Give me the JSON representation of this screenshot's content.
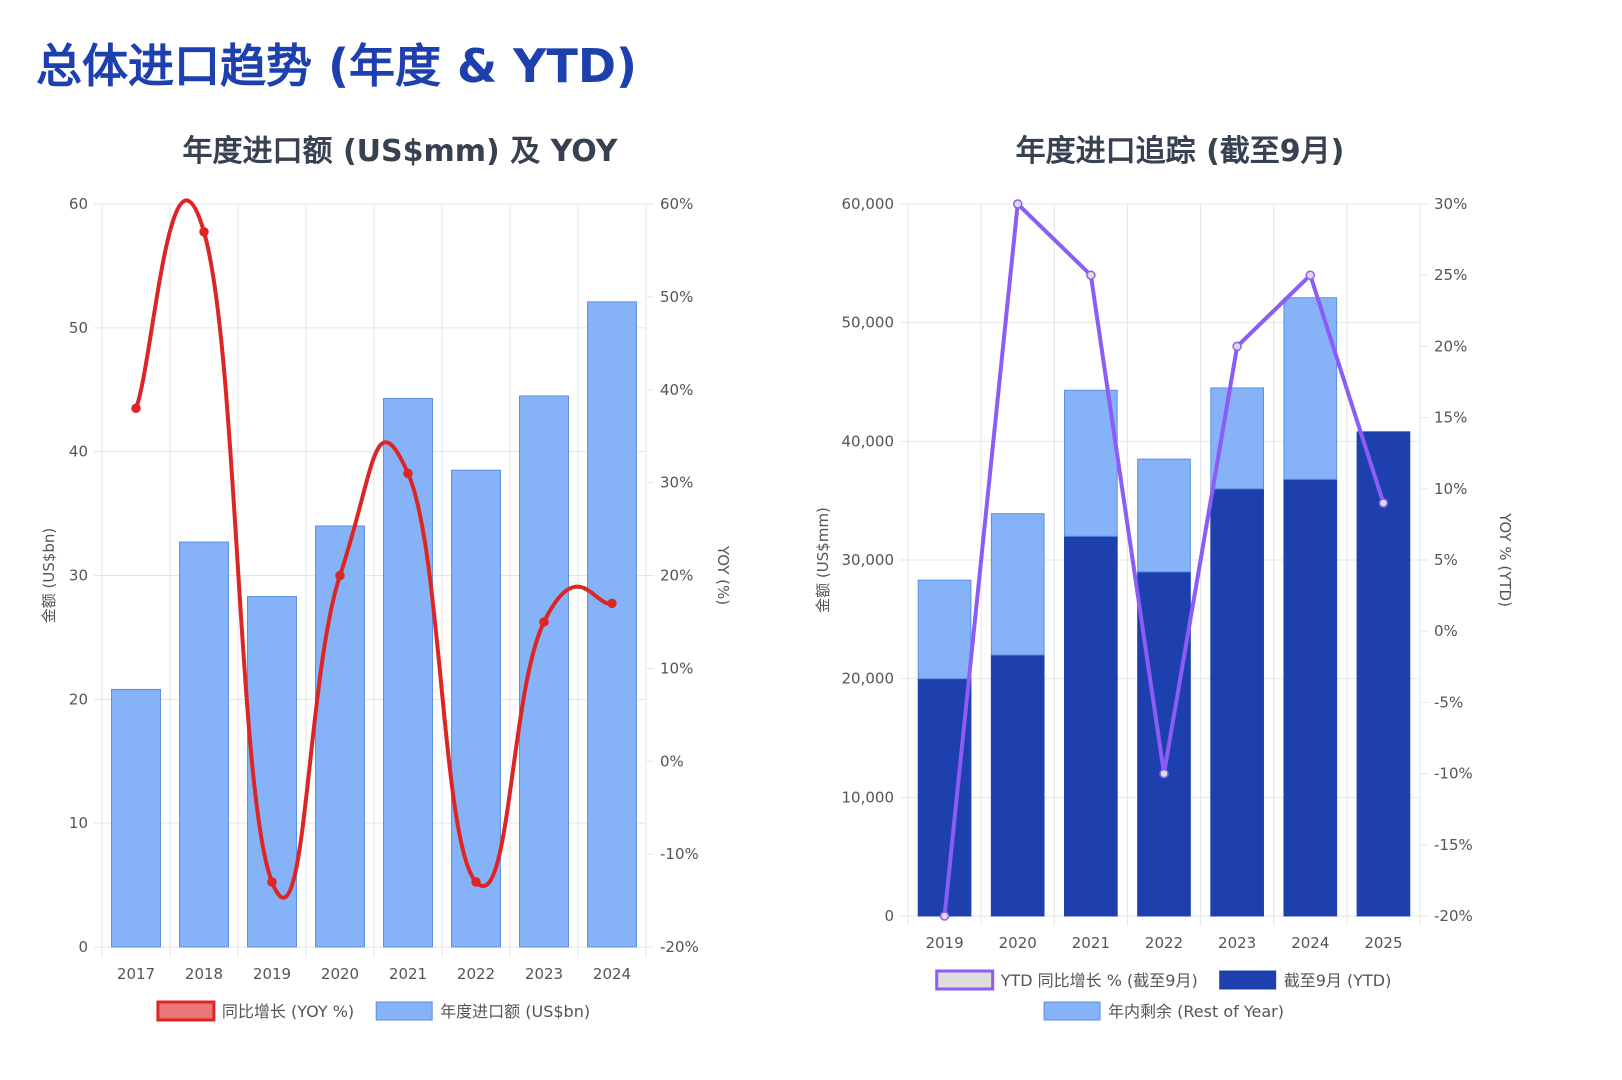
{
  "page_title": "总体进口趋势 (年度 & YTD)",
  "chart_data": [
    {
      "type": "bar",
      "title": "年度进口额 (US$mm) 及 YOY",
      "categories": [
        "2017",
        "2018",
        "2019",
        "2020",
        "2021",
        "2022",
        "2023",
        "2024"
      ],
      "ylabel": "金额 (US$bn)",
      "y2label": "YOY (%)",
      "ylim": [
        0,
        60
      ],
      "y_ticks": [
        "0",
        "10",
        "20",
        "30",
        "40",
        "50",
        "60"
      ],
      "y2lim": [
        -20,
        60
      ],
      "y2_ticks": [
        "-20%",
        "-10%",
        "0%",
        "10%",
        "20%",
        "30%",
        "40%",
        "50%",
        "60%"
      ],
      "grid": true,
      "legend_position": "bottom",
      "series": [
        {
          "name": "同比增长 (YOY %)",
          "type": "line",
          "axis": "right",
          "smooth": true,
          "color": "#dc2626",
          "values": [
            38,
            57,
            -13,
            20,
            31,
            -13,
            15,
            17
          ]
        },
        {
          "name": "年度进口额 (US$bn)",
          "type": "bar",
          "axis": "left",
          "color": "#86b3f7",
          "values": [
            20.8,
            32.7,
            28.3,
            34.0,
            44.3,
            38.5,
            44.5,
            52.1
          ]
        }
      ]
    },
    {
      "type": "bar",
      "stacked": true,
      "title": "年度进口追踪 (截至9月)",
      "categories": [
        "2019",
        "2020",
        "2021",
        "2022",
        "2023",
        "2024",
        "2025"
      ],
      "ylabel": "金额 (US$mm)",
      "y2label": "YOY % (YTD)",
      "ylim": [
        0,
        60000
      ],
      "y_ticks": [
        "0",
        "10,000",
        "20,000",
        "30,000",
        "40,000",
        "50,000",
        "60,000"
      ],
      "y2lim": [
        -20,
        30
      ],
      "y2_ticks": [
        "-20%",
        "-15%",
        "-10%",
        "-5%",
        "0%",
        "5%",
        "10%",
        "15%",
        "20%",
        "25%",
        "30%"
      ],
      "grid": true,
      "legend_position": "bottom",
      "series": [
        {
          "name": "YTD 同比增长 % (截至9月)",
          "type": "line",
          "axis": "right",
          "color": "#8b5cf6",
          "values": [
            -20,
            30,
            25,
            -10,
            20,
            25,
            9
          ]
        },
        {
          "name": "截至9月 (YTD)",
          "type": "bar",
          "axis": "left",
          "color": "#1e40af",
          "values": [
            20000,
            22000,
            32000,
            29000,
            36000,
            36800,
            40800
          ]
        },
        {
          "name": "年内剩余 (Rest of Year)",
          "type": "bar",
          "axis": "left",
          "color": "#86b3f7",
          "values": [
            8300,
            11900,
            12300,
            9500,
            8500,
            15300,
            0
          ]
        }
      ]
    }
  ]
}
